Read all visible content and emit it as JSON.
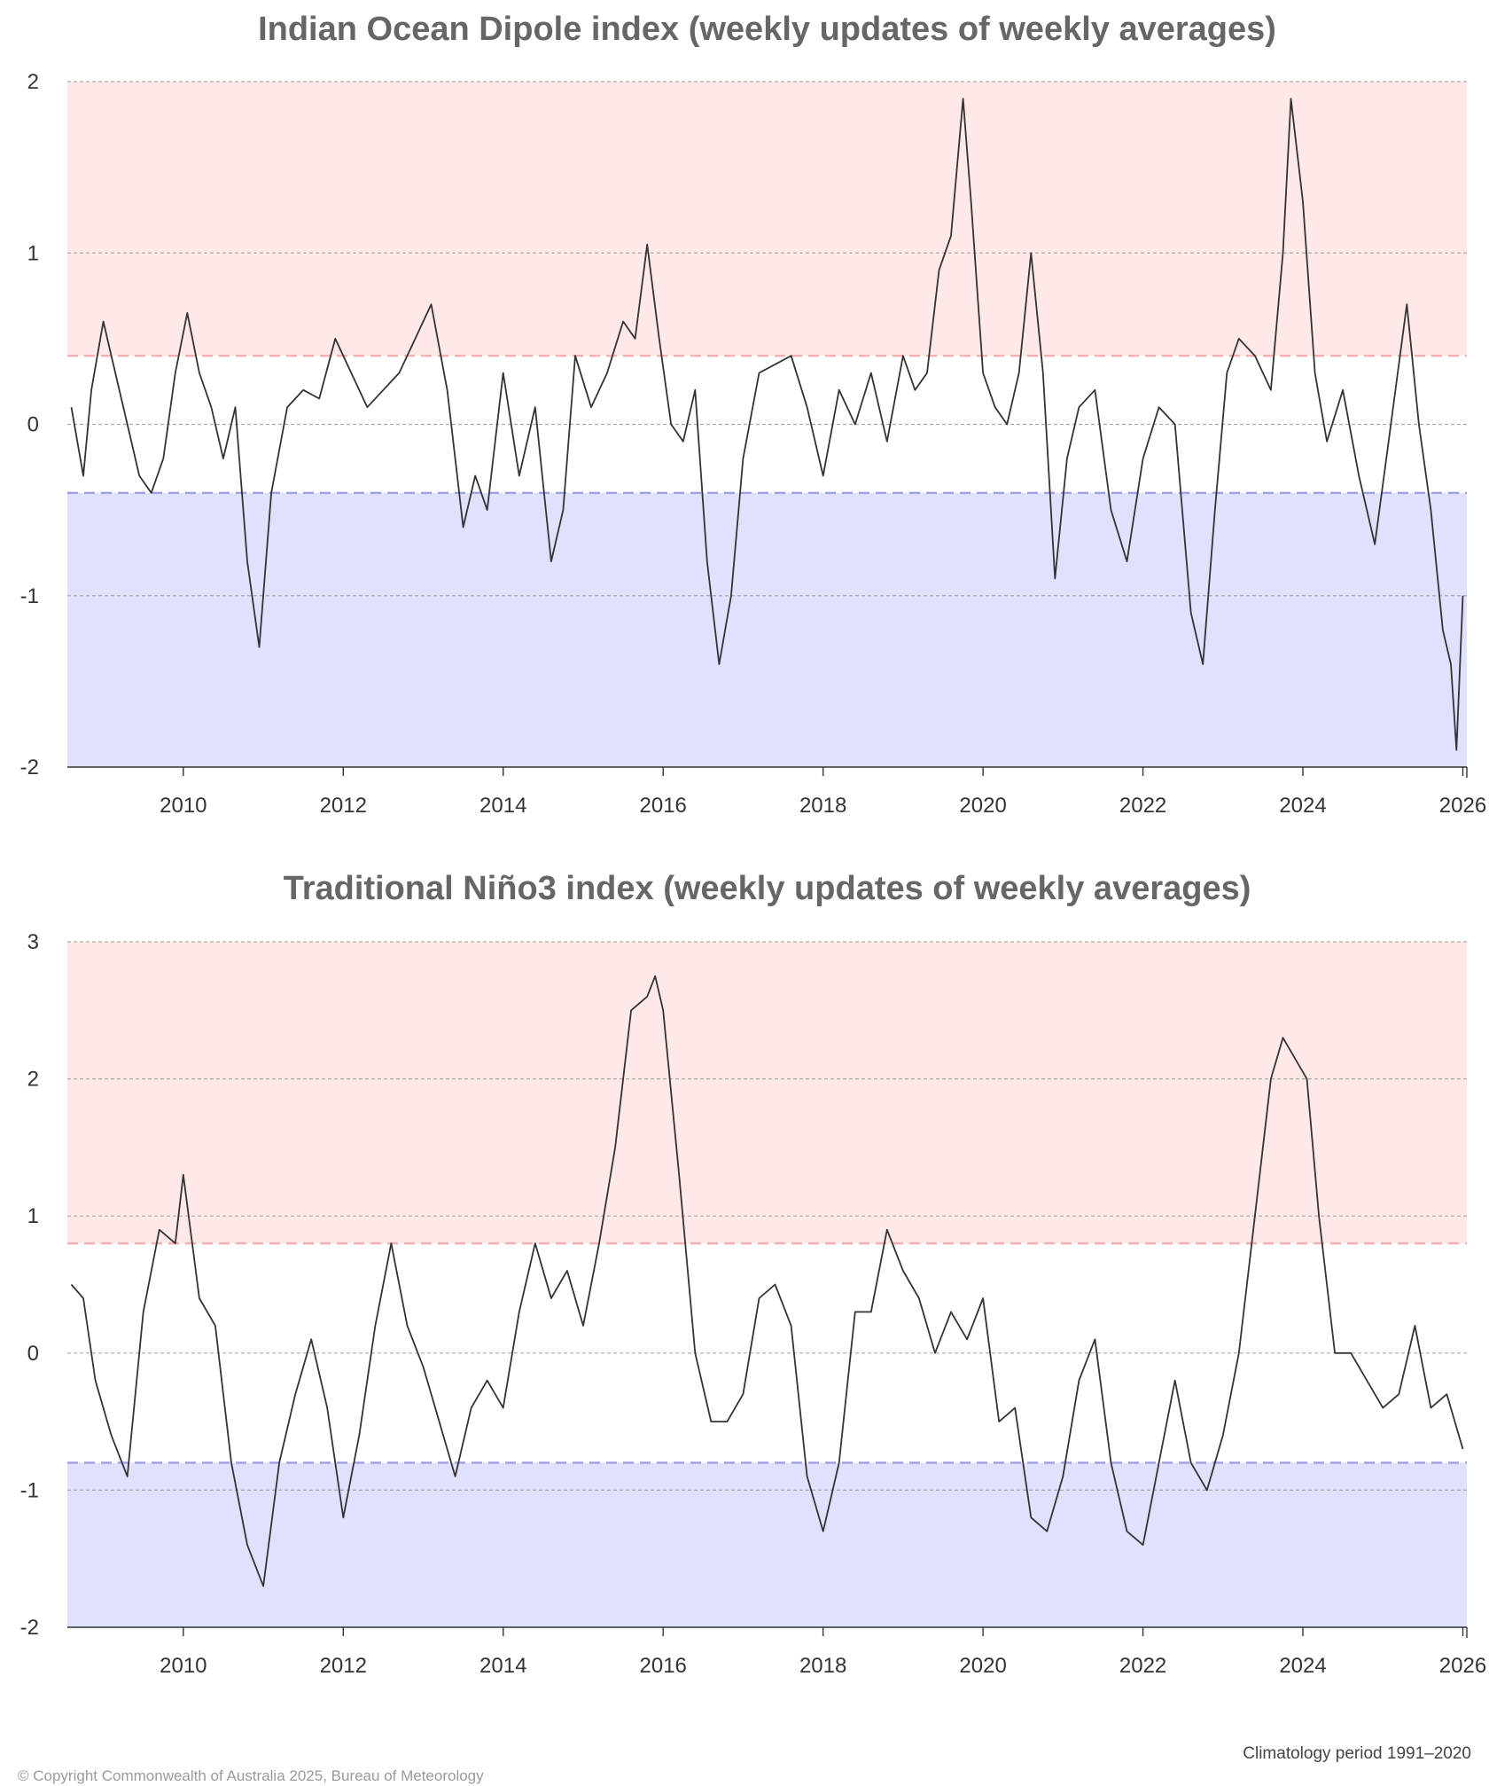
{
  "colors": {
    "positive_band": "#ffe8e8",
    "negative_band": "#e0e0ff",
    "positive_threshold": "#f4b0b0",
    "negative_threshold": "#a0a0e6",
    "gridline": "#aaaaaa",
    "series": "#333333",
    "title": "#666666"
  },
  "chart_data": [
    {
      "id": "iod",
      "type": "line",
      "title": "Indian Ocean Dipole index (weekly updates of weekly averages)",
      "xlabel": "",
      "ylabel": "",
      "xlim": [
        2008.55,
        2026.05
      ],
      "ylim": [
        -2,
        2
      ],
      "xticks": [
        2010,
        2012,
        2014,
        2016,
        2018,
        2020,
        2022,
        2024,
        2026
      ],
      "xtick_labels": [
        "2010",
        "2012",
        "2014",
        "2016",
        "2018",
        "2020",
        "2022",
        "2024",
        "2026"
      ],
      "yticks": [
        -2,
        -1,
        0,
        1,
        2
      ],
      "ytick_labels": [
        "-2",
        "-1",
        "0",
        "1",
        "2"
      ],
      "thresholds": {
        "positive": 0.4,
        "negative": -0.4
      },
      "grid": "horizontal dashed",
      "series": [
        {
          "name": "IOD index",
          "x": [
            2008.6,
            2008.75,
            2008.85,
            2009.0,
            2009.15,
            2009.3,
            2009.45,
            2009.6,
            2009.75,
            2009.9,
            2010.05,
            2010.2,
            2010.35,
            2010.5,
            2010.65,
            2010.8,
            2010.95,
            2011.1,
            2011.3,
            2011.5,
            2011.7,
            2011.9,
            2012.1,
            2012.3,
            2012.5,
            2012.7,
            2012.9,
            2013.1,
            2013.3,
            2013.5,
            2013.65,
            2013.8,
            2014.0,
            2014.2,
            2014.4,
            2014.6,
            2014.75,
            2014.9,
            2015.1,
            2015.3,
            2015.5,
            2015.65,
            2015.8,
            2015.95,
            2016.1,
            2016.25,
            2016.4,
            2016.55,
            2016.7,
            2016.85,
            2017.0,
            2017.2,
            2017.4,
            2017.6,
            2017.8,
            2018.0,
            2018.2,
            2018.4,
            2018.6,
            2018.8,
            2019.0,
            2019.15,
            2019.3,
            2019.45,
            2019.6,
            2019.75,
            2019.85,
            2020.0,
            2020.15,
            2020.3,
            2020.45,
            2020.6,
            2020.75,
            2020.9,
            2021.05,
            2021.2,
            2021.4,
            2021.6,
            2021.8,
            2022.0,
            2022.2,
            2022.4,
            2022.6,
            2022.75,
            2022.9,
            2023.05,
            2023.2,
            2023.4,
            2023.6,
            2023.75,
            2023.85,
            2024.0,
            2024.15,
            2024.3,
            2024.5,
            2024.7,
            2024.9,
            2025.1,
            2025.3,
            2025.45,
            2025.6,
            2025.75,
            2025.85,
            2025.92,
            2026.0
          ],
          "values": [
            0.1,
            -0.3,
            0.2,
            0.6,
            0.3,
            0.0,
            -0.3,
            -0.4,
            -0.2,
            0.3,
            0.65,
            0.3,
            0.1,
            -0.2,
            0.1,
            -0.8,
            -1.3,
            -0.4,
            0.1,
            0.2,
            0.15,
            0.5,
            0.3,
            0.1,
            0.2,
            0.3,
            0.5,
            0.7,
            0.2,
            -0.6,
            -0.3,
            -0.5,
            0.3,
            -0.3,
            0.1,
            -0.8,
            -0.5,
            0.4,
            0.1,
            0.3,
            0.6,
            0.5,
            1.05,
            0.5,
            0.0,
            -0.1,
            0.2,
            -0.8,
            -1.4,
            -1.0,
            -0.2,
            0.3,
            0.35,
            0.4,
            0.1,
            -0.3,
            0.2,
            0.0,
            0.3,
            -0.1,
            0.4,
            0.2,
            0.3,
            0.9,
            1.1,
            1.9,
            1.3,
            0.3,
            0.1,
            0.0,
            0.3,
            1.0,
            0.3,
            -0.9,
            -0.2,
            0.1,
            0.2,
            -0.5,
            -0.8,
            -0.2,
            0.1,
            0.0,
            -1.1,
            -1.4,
            -0.5,
            0.3,
            0.5,
            0.4,
            0.2,
            1.0,
            1.9,
            1.3,
            0.3,
            -0.1,
            0.2,
            -0.3,
            -0.7,
            0.0,
            0.7,
            0.0,
            -0.5,
            -1.2,
            -1.4,
            -1.9,
            -1.0
          ]
        }
      ]
    },
    {
      "id": "nino3",
      "type": "line",
      "title": "Traditional Niño3 index (weekly updates of weekly averages)",
      "xlabel": "",
      "ylabel": "",
      "xlim": [
        2008.55,
        2026.05
      ],
      "ylim": [
        -2,
        3
      ],
      "xticks": [
        2010,
        2012,
        2014,
        2016,
        2018,
        2020,
        2022,
        2024,
        2026
      ],
      "xtick_labels": [
        "2010",
        "2012",
        "2014",
        "2016",
        "2018",
        "2020",
        "2022",
        "2024",
        "2026"
      ],
      "yticks": [
        -2,
        -1,
        0,
        1,
        2,
        3
      ],
      "ytick_labels": [
        "-2",
        "-1",
        "0",
        "1",
        "2",
        "3"
      ],
      "thresholds": {
        "positive": 0.8,
        "negative": -0.8
      },
      "grid": "horizontal dashed",
      "series": [
        {
          "name": "Niño3 index",
          "x": [
            2008.6,
            2008.75,
            2008.9,
            2009.1,
            2009.3,
            2009.5,
            2009.7,
            2009.9,
            2010.0,
            2010.2,
            2010.4,
            2010.6,
            2010.8,
            2011.0,
            2011.2,
            2011.4,
            2011.6,
            2011.8,
            2012.0,
            2012.2,
            2012.4,
            2012.6,
            2012.8,
            2013.0,
            2013.2,
            2013.4,
            2013.6,
            2013.8,
            2014.0,
            2014.2,
            2014.4,
            2014.6,
            2014.8,
            2015.0,
            2015.2,
            2015.4,
            2015.6,
            2015.8,
            2015.9,
            2016.0,
            2016.2,
            2016.4,
            2016.6,
            2016.8,
            2017.0,
            2017.2,
            2017.4,
            2017.6,
            2017.8,
            2018.0,
            2018.2,
            2018.4,
            2018.6,
            2018.8,
            2019.0,
            2019.2,
            2019.4,
            2019.6,
            2019.8,
            2020.0,
            2020.2,
            2020.4,
            2020.6,
            2020.8,
            2021.0,
            2021.2,
            2021.4,
            2021.6,
            2021.8,
            2022.0,
            2022.2,
            2022.4,
            2022.6,
            2022.8,
            2023.0,
            2023.2,
            2023.4,
            2023.6,
            2023.75,
            2023.9,
            2024.05,
            2024.2,
            2024.4,
            2024.6,
            2024.8,
            2025.0,
            2025.2,
            2025.4,
            2025.6,
            2025.8,
            2026.0
          ],
          "values": [
            0.5,
            0.4,
            -0.2,
            -0.6,
            -0.9,
            0.3,
            0.9,
            0.8,
            1.3,
            0.4,
            0.2,
            -0.8,
            -1.4,
            -1.7,
            -0.8,
            -0.3,
            0.1,
            -0.4,
            -1.2,
            -0.6,
            0.2,
            0.8,
            0.2,
            -0.1,
            -0.5,
            -0.9,
            -0.4,
            -0.2,
            -0.4,
            0.3,
            0.8,
            0.4,
            0.6,
            0.2,
            0.8,
            1.5,
            2.5,
            2.6,
            2.75,
            2.5,
            1.3,
            0.0,
            -0.5,
            -0.5,
            -0.3,
            0.4,
            0.5,
            0.2,
            -0.9,
            -1.3,
            -0.8,
            0.3,
            0.3,
            0.9,
            0.6,
            0.4,
            0.0,
            0.3,
            0.1,
            0.4,
            -0.5,
            -0.4,
            -1.2,
            -1.3,
            -0.9,
            -0.2,
            0.1,
            -0.8,
            -1.3,
            -1.4,
            -0.8,
            -0.2,
            -0.8,
            -1.0,
            -0.6,
            0.0,
            1.0,
            2.0,
            2.3,
            2.15,
            2.0,
            1.0,
            0.0,
            0.0,
            -0.2,
            -0.4,
            -0.3,
            0.2,
            -0.4,
            -0.3,
            -0.7
          ]
        }
      ]
    }
  ],
  "footer": {
    "climatology": "Climatology period 1991–2020",
    "copyright": "© Copyright Commonwealth of Australia 2025, Bureau of Meteorology"
  }
}
